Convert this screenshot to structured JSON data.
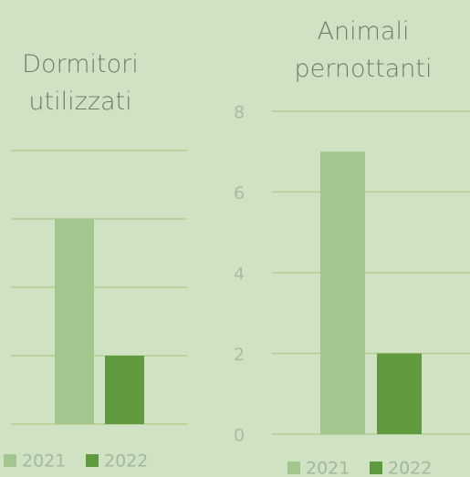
{
  "chart_data": [
    {
      "type": "bar",
      "title": "Dormitori utilizzati",
      "categories": [
        null
      ],
      "series": [
        {
          "name": "2021",
          "color": "#a3c68f",
          "values": [
            3
          ]
        },
        {
          "name": "2022",
          "color": "#5f9a3f",
          "values": [
            1
          ]
        }
      ],
      "ylim": [
        0,
        4
      ],
      "yticks": [
        0,
        1,
        2,
        3,
        4
      ],
      "grid": true,
      "tick_labels": false,
      "legend": "bottom"
    },
    {
      "type": "bar",
      "title": "Animali pernottanti",
      "categories": [
        null
      ],
      "series": [
        {
          "name": "2021",
          "color": "#a3c68f",
          "values": [
            7
          ]
        },
        {
          "name": "2022",
          "color": "#5f9a3f",
          "values": [
            2
          ]
        }
      ],
      "ylim": [
        0,
        8
      ],
      "yticks": [
        0,
        2,
        4,
        6,
        8
      ],
      "grid": true,
      "tick_labels": true,
      "legend": "bottom"
    }
  ]
}
